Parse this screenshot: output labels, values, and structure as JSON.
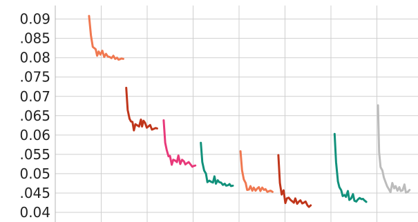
{
  "chart_data": {
    "type": "line",
    "title": "",
    "xlabel": "",
    "ylabel": "",
    "ylim": [
      0.0375,
      0.0935
    ],
    "xlim": [
      0,
      100
    ],
    "grid": true,
    "legend": "none",
    "y_ticks": [
      {
        "value": 0.04,
        "label": "0.04"
      },
      {
        "value": 0.045,
        "label": ".045"
      },
      {
        "value": 0.05,
        "label": "0.05"
      },
      {
        "value": 0.055,
        "label": ".055"
      },
      {
        "value": 0.06,
        "label": "0.06"
      },
      {
        "value": 0.065,
        "label": ".065"
      },
      {
        "value": 0.07,
        "label": "0.07"
      },
      {
        "value": 0.075,
        "label": ".075"
      },
      {
        "value": 0.08,
        "label": "0.08"
      },
      {
        "value": 0.085,
        "label": ".085"
      },
      {
        "value": 0.09,
        "label": "0.09"
      }
    ],
    "x_grid": [
      0,
      12.5,
      25,
      37.5,
      50,
      62.5,
      75,
      87.5,
      100
    ],
    "series": [
      {
        "color": "#f07850",
        "x": [
          9.2,
          9.7,
          10.2,
          11.0,
          11.4,
          11.8,
          12.3,
          12.8,
          13.3,
          13.8,
          14.3,
          14.8,
          15.3,
          15.8,
          16.3,
          16.8,
          17.2,
          17.6,
          18.0,
          18.5
        ],
        "y": [
          0.0908,
          0.0858,
          0.0828,
          0.0822,
          0.0805,
          0.0816,
          0.0808,
          0.0818,
          0.0802,
          0.081,
          0.0803,
          0.0802,
          0.0799,
          0.0805,
          0.0797,
          0.08,
          0.0795,
          0.0796,
          0.0798,
          0.0797
        ]
      },
      {
        "color": "#c0361b",
        "x": [
          19.3,
          19.7,
          20.2,
          20.6,
          21.0,
          21.4,
          21.8,
          22.3,
          22.8,
          23.3,
          23.6,
          24.0,
          24.4,
          24.9,
          25.3,
          25.8,
          26.3,
          26.8,
          27.3,
          27.7
        ],
        "y": [
          0.0722,
          0.0665,
          0.0642,
          0.0635,
          0.0634,
          0.0612,
          0.0628,
          0.0625,
          0.0622,
          0.064,
          0.0622,
          0.0637,
          0.0632,
          0.0619,
          0.0622,
          0.0626,
          0.0614,
          0.0616,
          0.0618,
          0.0617
        ]
      },
      {
        "color": "#e8397a",
        "x": [
          29.5,
          29.9,
          30.3,
          30.8,
          31.2,
          31.7,
          32.1,
          32.6,
          33.1,
          33.5,
          34.0,
          34.5,
          35.0,
          35.4,
          35.8,
          36.3,
          36.8,
          37.3,
          37.7,
          38.1
        ],
        "y": [
          0.0638,
          0.058,
          0.0562,
          0.0545,
          0.0546,
          0.0523,
          0.0536,
          0.0534,
          0.053,
          0.0547,
          0.0525,
          0.0536,
          0.0532,
          0.0524,
          0.0527,
          0.053,
          0.0524,
          0.0518,
          0.052,
          0.0521
        ]
      },
      {
        "color": "#11917b",
        "x": [
          39.6,
          40.0,
          40.5,
          41.0,
          41.4,
          41.9,
          42.4,
          42.9,
          43.3,
          43.7,
          44.2,
          44.6,
          45.1,
          45.6,
          46.1,
          46.5,
          47.0,
          47.4,
          47.8,
          48.3
        ],
        "y": [
          0.058,
          0.053,
          0.0508,
          0.05,
          0.0478,
          0.0482,
          0.0479,
          0.0477,
          0.0493,
          0.0474,
          0.0483,
          0.0478,
          0.0477,
          0.0471,
          0.0474,
          0.0469,
          0.047,
          0.0473,
          0.0468,
          0.0469
        ]
      },
      {
        "color": "#f07850",
        "x": [
          50.4,
          50.8,
          51.3,
          51.8,
          52.2,
          52.7,
          53.1,
          53.6,
          54.0,
          54.5,
          55.0,
          55.4,
          55.8,
          56.3,
          56.8,
          57.2,
          57.7,
          58.2,
          58.6,
          59.1
        ],
        "y": [
          0.0558,
          0.0509,
          0.0485,
          0.0476,
          0.0458,
          0.0459,
          0.0468,
          0.0456,
          0.0464,
          0.0456,
          0.0462,
          0.0465,
          0.0455,
          0.0464,
          0.0458,
          0.046,
          0.0453,
          0.0455,
          0.0456,
          0.0453
        ]
      },
      {
        "color": "#c0361b",
        "x": [
          60.7,
          61.1,
          61.6,
          62.1,
          62.6,
          63.0,
          63.5,
          64.0,
          64.4,
          64.9,
          65.3,
          65.8,
          66.3,
          66.7,
          67.2,
          67.6,
          68.1,
          68.6,
          69.0,
          69.5
        ],
        "y": [
          0.0548,
          0.0476,
          0.0446,
          0.0457,
          0.0424,
          0.0436,
          0.0438,
          0.0432,
          0.0429,
          0.0425,
          0.0436,
          0.0422,
          0.0428,
          0.0431,
          0.0423,
          0.0425,
          0.0428,
          0.0418,
          0.0414,
          0.0418
        ]
      },
      {
        "color": "#11917b",
        "x": [
          76.0,
          76.4,
          76.9,
          77.3,
          77.8,
          78.2,
          78.7,
          79.1,
          79.6,
          80.0,
          80.5,
          81.0,
          81.4,
          81.9,
          82.3,
          82.8,
          83.3,
          83.7,
          84.1,
          84.6
        ],
        "y": [
          0.0603,
          0.053,
          0.048,
          0.0465,
          0.0457,
          0.0442,
          0.0445,
          0.044,
          0.0455,
          0.0432,
          0.0436,
          0.0447,
          0.043,
          0.0428,
          0.0433,
          0.0437,
          0.0434,
          0.0435,
          0.0431,
          0.0427
        ]
      },
      {
        "color": "#bcbcbc",
        "x": [
          87.8,
          88.1,
          88.5,
          89.0,
          89.4,
          89.9,
          90.3,
          90.8,
          91.2,
          91.7,
          92.2,
          92.6,
          93.1,
          93.6,
          94.0,
          94.5,
          95.0,
          95.4,
          95.9,
          96.4
        ],
        "y": [
          0.0677,
          0.0556,
          0.0517,
          0.0508,
          0.049,
          0.0477,
          0.0467,
          0.0459,
          0.0452,
          0.0476,
          0.0462,
          0.0468,
          0.0456,
          0.0465,
          0.0455,
          0.0457,
          0.0472,
          0.0451,
          0.0453,
          0.0458
        ]
      }
    ]
  }
}
